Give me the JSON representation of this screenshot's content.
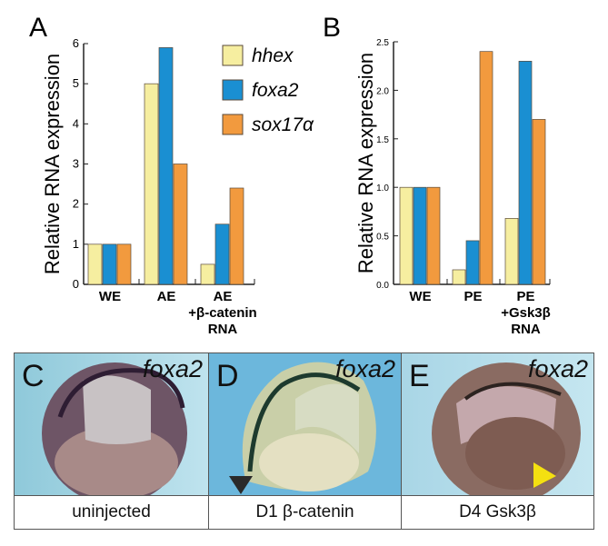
{
  "chart_data": [
    {
      "type": "bar",
      "panel_label": "A",
      "ylabel": "Relative RNA expression",
      "ylim": [
        0,
        6
      ],
      "yticks": [
        "0",
        "1",
        "2",
        "3",
        "4",
        "5",
        "6"
      ],
      "categories": [
        "WE",
        "AE",
        "AE +β-catenin RNA"
      ],
      "category_lines": [
        [
          "WE"
        ],
        [
          "AE"
        ],
        [
          "AE",
          "+β-catenin",
          "RNA"
        ]
      ],
      "series": [
        {
          "name": "hhex",
          "values": [
            1,
            5,
            0.5
          ]
        },
        {
          "name": "foxa2",
          "values": [
            1,
            5.9,
            1.5
          ]
        },
        {
          "name": "sox17α",
          "values": [
            1,
            3,
            2.4
          ]
        }
      ],
      "legend": "top-right",
      "grid": false
    },
    {
      "type": "bar",
      "panel_label": "B",
      "ylabel": "Relative RNA expression",
      "ylim": [
        0,
        2.5
      ],
      "yticks": [
        "0.0",
        "0.5",
        "1.0",
        "1.5",
        "2.0",
        "2.5"
      ],
      "categories": [
        "WE",
        "PE",
        "PE +Gsk3β RNA"
      ],
      "category_lines": [
        [
          "WE"
        ],
        [
          "PE"
        ],
        [
          "PE",
          "+Gsk3β",
          "RNA"
        ]
      ],
      "series": [
        {
          "name": "hhex",
          "values": [
            1,
            0.15,
            0.68
          ]
        },
        {
          "name": "foxa2",
          "values": [
            1,
            0.45,
            2.3
          ]
        },
        {
          "name": "sox17α",
          "values": [
            1,
            2.4,
            1.7
          ]
        }
      ],
      "grid": false
    }
  ],
  "colors": {
    "hhex": "#f6eea0",
    "foxa2": "#1a8fd2",
    "sox17α": "#f29a3e"
  },
  "images": [
    {
      "label": "C",
      "gene": "foxa2",
      "caption": "uninjected"
    },
    {
      "label": "D",
      "gene": "foxa2",
      "caption": "D1 β-catenin",
      "marker": "black arrowhead"
    },
    {
      "label": "E",
      "gene": "foxa2",
      "caption": "D4 Gsk3β",
      "marker": "yellow arrowhead"
    }
  ]
}
